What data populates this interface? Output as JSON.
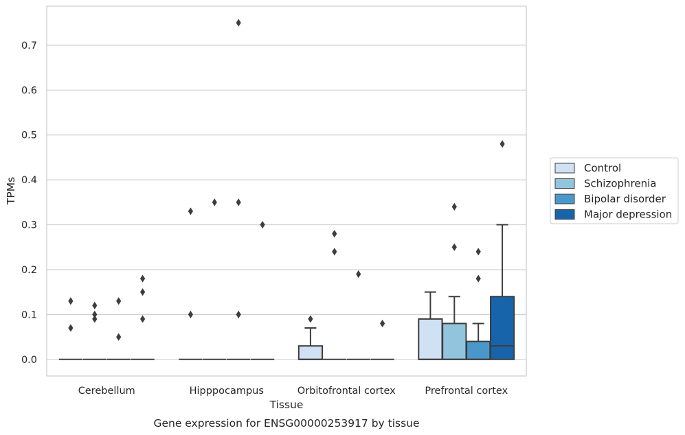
{
  "chart_data": {
    "type": "box",
    "title": "",
    "caption": "Gene expression for ENSG00000253917 by tissue",
    "xlabel": "Tissue",
    "ylabel": "TPMs",
    "ylim": [
      -0.037,
      0.787
    ],
    "yticks": [
      "0.0",
      "0.1",
      "0.2",
      "0.3",
      "0.4",
      "0.5",
      "0.6",
      "0.7"
    ],
    "grid": true,
    "legend_position": "right",
    "categories": [
      "Cerebellum",
      "Hipppocampus",
      "Orbitofrontal cortex",
      "Prefrontal cortex"
    ],
    "series": [
      {
        "name": "Control",
        "color": "#cfe1f2",
        "boxes": [
          {
            "category": "Cerebellum",
            "whisker_low": 0,
            "q1": 0,
            "median": 0,
            "q3": 0,
            "whisker_high": 0,
            "outliers": [
              0.13,
              0.07
            ]
          },
          {
            "category": "Hipppocampus",
            "whisker_low": 0,
            "q1": 0,
            "median": 0,
            "q3": 0,
            "whisker_high": 0,
            "outliers": [
              0.33,
              0.1
            ]
          },
          {
            "category": "Orbitofrontal cortex",
            "whisker_low": 0,
            "q1": 0,
            "median": 0,
            "q3": 0.03,
            "whisker_high": 0.07,
            "outliers": [
              0.09
            ]
          },
          {
            "category": "Prefrontal cortex",
            "whisker_low": 0,
            "q1": 0,
            "median": 0,
            "q3": 0.09,
            "whisker_high": 0.15,
            "outliers": []
          }
        ]
      },
      {
        "name": "Schizophrenia",
        "color": "#93c4de",
        "boxes": [
          {
            "category": "Cerebellum",
            "whisker_low": 0,
            "q1": 0,
            "median": 0,
            "q3": 0,
            "whisker_high": 0,
            "outliers": [
              0.12,
              0.1,
              0.09
            ]
          },
          {
            "category": "Hipppocampus",
            "whisker_low": 0,
            "q1": 0,
            "median": 0,
            "q3": 0,
            "whisker_high": 0,
            "outliers": [
              0.35
            ]
          },
          {
            "category": "Orbitofrontal cortex",
            "whisker_low": 0,
            "q1": 0,
            "median": 0,
            "q3": 0,
            "whisker_high": 0,
            "outliers": [
              0.28,
              0.24
            ]
          },
          {
            "category": "Prefrontal cortex",
            "whisker_low": 0,
            "q1": 0,
            "median": 0,
            "q3": 0.08,
            "whisker_high": 0.14,
            "outliers": [
              0.34,
              0.25
            ]
          }
        ]
      },
      {
        "name": "Bipolar disorder",
        "color": "#4a98c9",
        "boxes": [
          {
            "category": "Cerebellum",
            "whisker_low": 0,
            "q1": 0,
            "median": 0,
            "q3": 0,
            "whisker_high": 0,
            "outliers": [
              0.13,
              0.05
            ]
          },
          {
            "category": "Hipppocampus",
            "whisker_low": 0,
            "q1": 0,
            "median": 0,
            "q3": 0,
            "whisker_high": 0,
            "outliers": [
              0.75,
              0.35,
              0.1
            ]
          },
          {
            "category": "Orbitofrontal cortex",
            "whisker_low": 0,
            "q1": 0,
            "median": 0,
            "q3": 0,
            "whisker_high": 0,
            "outliers": [
              0.19
            ]
          },
          {
            "category": "Prefrontal cortex",
            "whisker_low": 0,
            "q1": 0,
            "median": 0,
            "q3": 0.04,
            "whisker_high": 0.08,
            "outliers": [
              0.24,
              0.18
            ]
          }
        ]
      },
      {
        "name": "Major depression",
        "color": "#1764ab",
        "boxes": [
          {
            "category": "Cerebellum",
            "whisker_low": 0,
            "q1": 0,
            "median": 0,
            "q3": 0,
            "whisker_high": 0,
            "outliers": [
              0.18,
              0.15,
              0.09
            ]
          },
          {
            "category": "Hipppocampus",
            "whisker_low": 0,
            "q1": 0,
            "median": 0,
            "q3": 0,
            "whisker_high": 0,
            "outliers": [
              0.3
            ]
          },
          {
            "category": "Orbitofrontal cortex",
            "whisker_low": 0,
            "q1": 0,
            "median": 0,
            "q3": 0,
            "whisker_high": 0,
            "outliers": [
              0.08
            ]
          },
          {
            "category": "Prefrontal cortex",
            "whisker_low": 0,
            "q1": 0,
            "median": 0.03,
            "q3": 0.14,
            "whisker_high": 0.3,
            "outliers": [
              0.48
            ]
          }
        ]
      }
    ]
  }
}
